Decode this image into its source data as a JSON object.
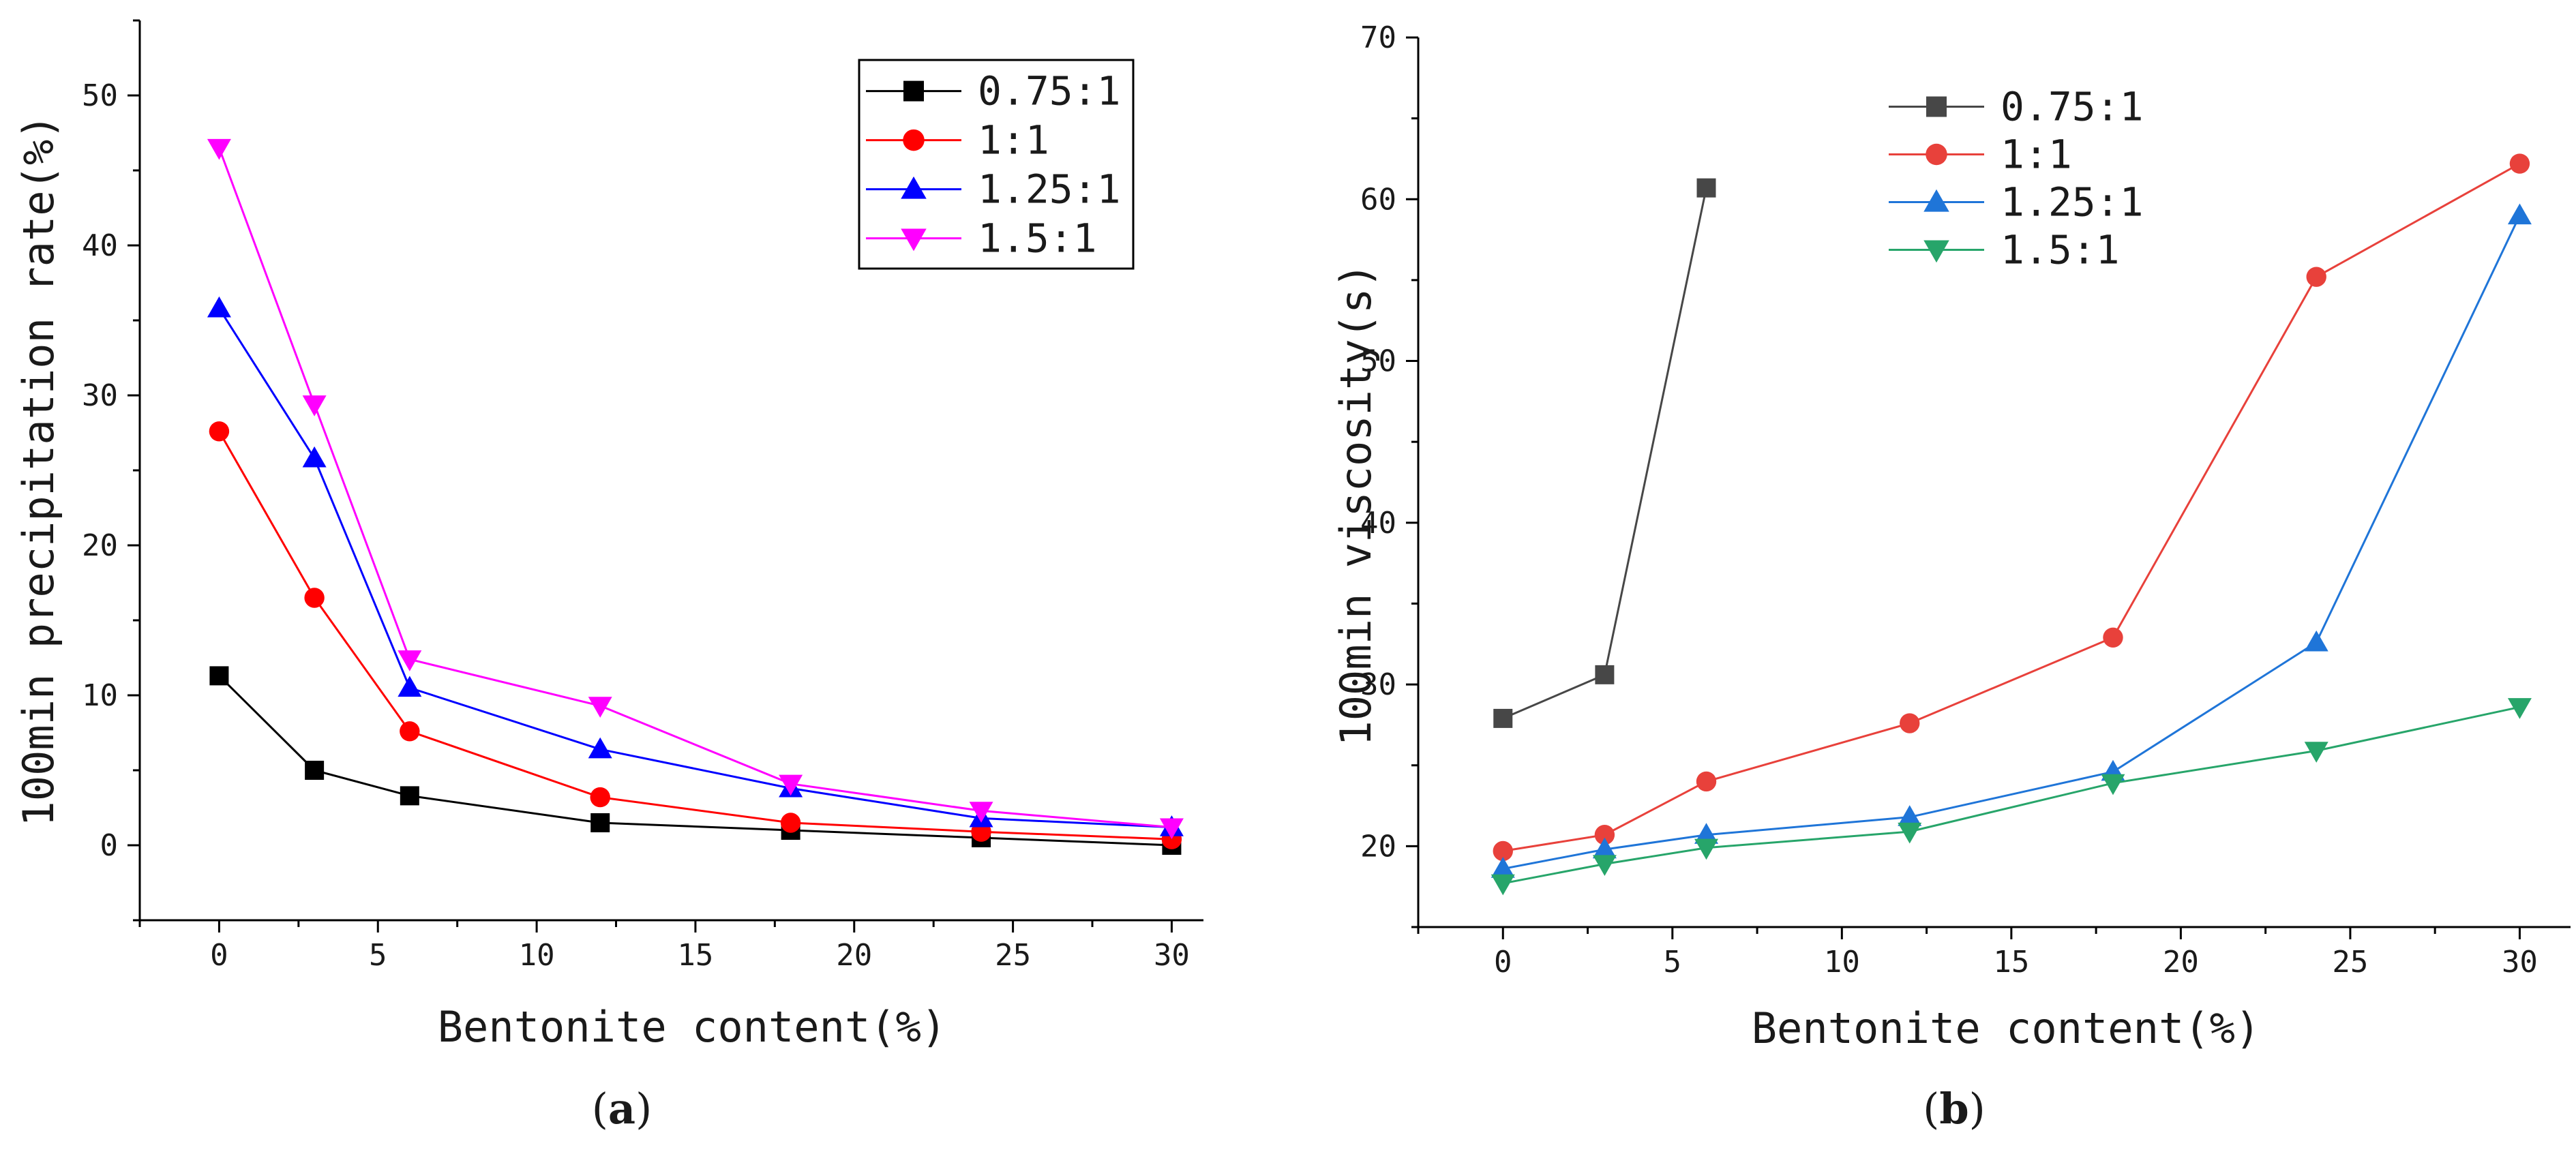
{
  "chart_data": [
    {
      "type": "line",
      "panel": "a",
      "caption_letter": "a",
      "xlabel": "Bentonite content(%)",
      "ylabel": "100min precipitation rate(%)",
      "xlim": [
        -2.5,
        31
      ],
      "ylim": [
        -5,
        55
      ],
      "x_ticks": [
        0,
        5,
        10,
        15,
        20,
        25,
        30
      ],
      "y_ticks": [
        0,
        10,
        20,
        30,
        40,
        50
      ],
      "legend_position": "top-right",
      "legend_boxed": true,
      "x": [
        0,
        3,
        6,
        12,
        18,
        24,
        30
      ],
      "series": [
        {
          "name": "0.75:1",
          "color": "#000000",
          "marker": "square",
          "values": [
            11.3,
            5.0,
            3.3,
            1.5,
            1.0,
            0.5,
            0.0
          ]
        },
        {
          "name": "1:1",
          "color": "#ff0000",
          "marker": "circle",
          "values": [
            27.6,
            16.5,
            7.6,
            3.2,
            1.5,
            0.9,
            0.4
          ]
        },
        {
          "name": "1.25:1",
          "color": "#0000ff",
          "marker": "triangle-up",
          "values": [
            35.8,
            25.8,
            10.5,
            6.4,
            3.8,
            1.8,
            1.2
          ]
        },
        {
          "name": "1.5:1",
          "color": "#ff00ff",
          "marker": "triangle-down",
          "values": [
            46.5,
            29.4,
            12.4,
            9.3,
            4.1,
            2.3,
            1.2
          ]
        }
      ]
    },
    {
      "type": "line",
      "panel": "b",
      "caption_letter": "b",
      "xlabel": "Bentonite content(%)",
      "ylabel": "100min viscosity(s)",
      "xlim": [
        -2.5,
        31.5
      ],
      "ylim": [
        15,
        70
      ],
      "x_ticks": [
        0,
        5,
        10,
        15,
        20,
        25,
        30
      ],
      "y_ticks": [
        20,
        30,
        40,
        50,
        60,
        70
      ],
      "legend_position": "top-left",
      "legend_boxed": false,
      "x": [
        0,
        3,
        6,
        12,
        18,
        24,
        30
      ],
      "series": [
        {
          "name": "0.75:1",
          "color": "#474747",
          "marker": "square",
          "x": [
            0,
            3,
            6
          ],
          "values": [
            27.9,
            30.6,
            60.7
          ]
        },
        {
          "name": "1:1",
          "color": "#e8413b",
          "marker": "circle",
          "values": [
            19.7,
            20.7,
            24.0,
            27.6,
            32.9,
            55.2,
            62.2
          ]
        },
        {
          "name": "1.25:1",
          "color": "#1f75d8",
          "marker": "triangle-up",
          "values": [
            18.6,
            19.8,
            20.7,
            21.8,
            24.6,
            32.6,
            59.0
          ]
        },
        {
          "name": "1.5:1",
          "color": "#27a56a",
          "marker": "triangle-down",
          "values": [
            17.7,
            18.9,
            19.9,
            20.9,
            23.9,
            25.9,
            28.6
          ]
        }
      ]
    }
  ]
}
